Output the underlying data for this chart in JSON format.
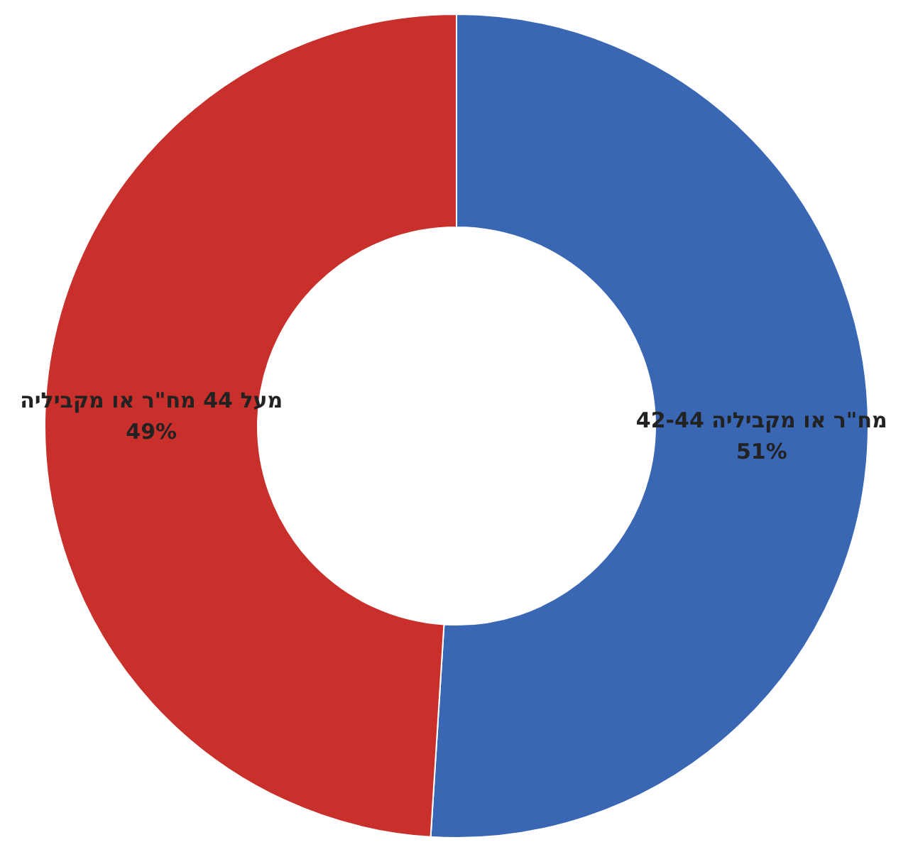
{
  "chart_data": {
    "type": "donut",
    "categories": [
      "42-44 מח\"ר או מקביליה",
      "מעל 44 מח\"ר או מקביליה"
    ],
    "values": [
      51,
      49
    ],
    "colors": [
      "#3a67b4",
      "#c9302c"
    ],
    "value_labels": [
      "51%",
      "49%"
    ]
  }
}
